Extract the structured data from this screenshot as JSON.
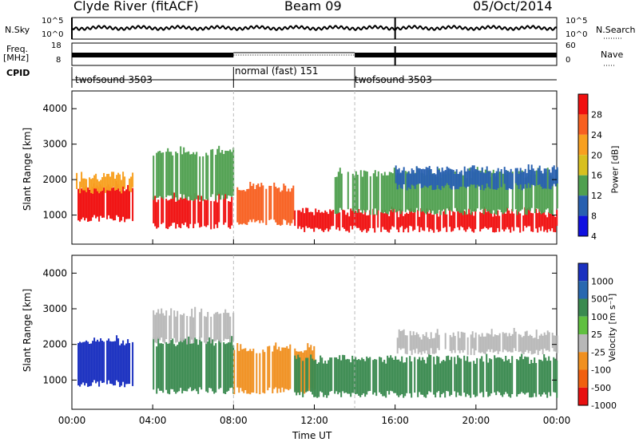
{
  "header": {
    "station": "Clyde River (fitACF)",
    "beam": "Beam 09",
    "date": "05/Oct/2014"
  },
  "left_labels": {
    "nsky": "N.Sky",
    "freq": "Freq.",
    "freq_unit": "[MHz]",
    "cpid": "CPID"
  },
  "right_labels": {
    "nsearch": "N.Search",
    "nave": "Nave"
  },
  "noise_axis": {
    "left_top": "10^5",
    "left_bottom": "10^0",
    "right_top": "10^5",
    "right_bottom": "10^0"
  },
  "freq_axis": {
    "left_top": "18",
    "left_bottom": "8",
    "right_top": "60",
    "right_bottom": "0"
  },
  "cpid_segments": [
    {
      "label": "twofsound 3503",
      "start_hour": 0,
      "end_hour": 8
    },
    {
      "label": "normal (fast) 151",
      "start_hour": 8,
      "end_hour": 14
    },
    {
      "label": "twofsound 3503",
      "start_hour": 14,
      "end_hour": 24
    }
  ],
  "colorbars": {
    "power": {
      "label": "Power [dB]",
      "ticks": [
        "28",
        "24",
        "20",
        "16",
        "12",
        "8",
        "4"
      ],
      "colors": [
        "#f01010",
        "#f86020",
        "#f8a020",
        "#d8c020",
        "#50a050",
        "#2860b0",
        "#1010e0"
      ]
    },
    "velocity": {
      "label": "Velocity [m s⁻¹]",
      "ticks": [
        "1000",
        "500",
        "100",
        "25",
        "-25",
        "-100",
        "-500",
        "-1000"
      ],
      "colors": [
        "#1a30c0",
        "#2868b0",
        "#3a8a50",
        "#60c040",
        "#b8b8b8",
        "#f09020",
        "#f06010",
        "#e81010"
      ]
    }
  },
  "chart_data": {
    "type": "heatmap",
    "x_axis": {
      "label": "Time UT",
      "ticks": [
        "00:00",
        "04:00",
        "08:00",
        "12:00",
        "16:00",
        "20:00",
        "00:00"
      ],
      "range_hours": [
        0,
        24
      ]
    },
    "y_axis": {
      "label": "Slant Range [km]",
      "ticks": [
        1000,
        2000,
        3000,
        4000
      ],
      "range": [
        180,
        4500
      ]
    },
    "panels": [
      {
        "name": "Power",
        "bands": [
          {
            "start": 0.2,
            "end": 3.0,
            "low": 900,
            "high": 1800,
            "color": "#f01010"
          },
          {
            "start": 0.2,
            "end": 3.0,
            "low": 1700,
            "high": 2100,
            "color": "#f8a020"
          },
          {
            "start": 4.0,
            "end": 8.0,
            "low": 700,
            "high": 1500,
            "color": "#f01010"
          },
          {
            "start": 4.0,
            "end": 8.0,
            "low": 1500,
            "high": 2800,
            "color": "#50a050"
          },
          {
            "start": 8.0,
            "end": 11.0,
            "low": 800,
            "high": 1800,
            "color": "#f86020"
          },
          {
            "start": 11.0,
            "end": 24.0,
            "low": 600,
            "high": 1100,
            "color": "#f01010"
          },
          {
            "start": 13.0,
            "end": 24.0,
            "low": 1100,
            "high": 2200,
            "color": "#50a050"
          },
          {
            "start": 16.0,
            "end": 24.0,
            "low": 1800,
            "high": 2300,
            "color": "#2860b0"
          }
        ]
      },
      {
        "name": "Velocity",
        "bands": [
          {
            "start": 0.2,
            "end": 3.0,
            "low": 900,
            "high": 2100,
            "color": "#1a30c0"
          },
          {
            "start": 4.0,
            "end": 8.0,
            "low": 700,
            "high": 2100,
            "color": "#3a8a50"
          },
          {
            "start": 4.0,
            "end": 8.0,
            "low": 2100,
            "high": 2900,
            "color": "#b8b8b8"
          },
          {
            "start": 8.0,
            "end": 12.0,
            "low": 700,
            "high": 1900,
            "color": "#f09020"
          },
          {
            "start": 11.0,
            "end": 24.0,
            "low": 600,
            "high": 1600,
            "color": "#3a8a50"
          },
          {
            "start": 16.0,
            "end": 24.0,
            "low": 1800,
            "high": 2300,
            "color": "#b8b8b8"
          }
        ]
      }
    ]
  }
}
